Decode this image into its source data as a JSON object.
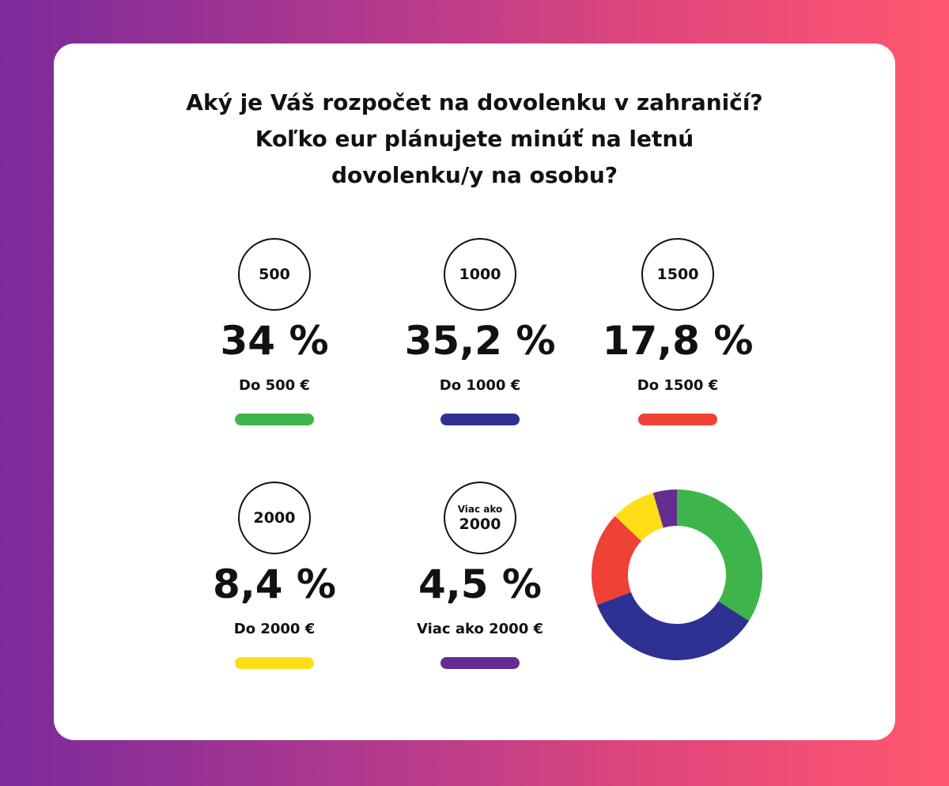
{
  "title_lines": [
    "Aký je Váš rozpočet na dovolenku v zahraničí?",
    "Koľko eur plánujete minúť na letnú",
    "dovolenku/y na osobu?"
  ],
  "stats": [
    {
      "circle": "500",
      "percent": "34 %",
      "label": "Do 500 €",
      "color": "#3db54a"
    },
    {
      "circle": "1000",
      "percent": "35,2 %",
      "label": "Do 1000 €",
      "color": "#2e3192"
    },
    {
      "circle": "1500",
      "percent": "17,8 %",
      "label": "Do 1500 €",
      "color": "#ef4136"
    },
    {
      "circle": "2000",
      "percent": "8,4 %",
      "label": "Do 2000 €",
      "color": "#ffde17"
    },
    {
      "circle_small": "Viac ako",
      "circle": "2000",
      "percent": "4,5 %",
      "label": "Viac ako 2000 €",
      "color": "#662d91"
    }
  ],
  "chart_data": {
    "type": "pie",
    "categories": [
      "Do 500 €",
      "Do 1000 €",
      "Do 1500 €",
      "Do 2000 €",
      "Viac ako 2000 €"
    ],
    "values": [
      34,
      35.2,
      17.8,
      8.4,
      4.5
    ],
    "colors": [
      "#3db54a",
      "#2e3192",
      "#ef4136",
      "#ffde17",
      "#662d91"
    ],
    "donut": true
  }
}
